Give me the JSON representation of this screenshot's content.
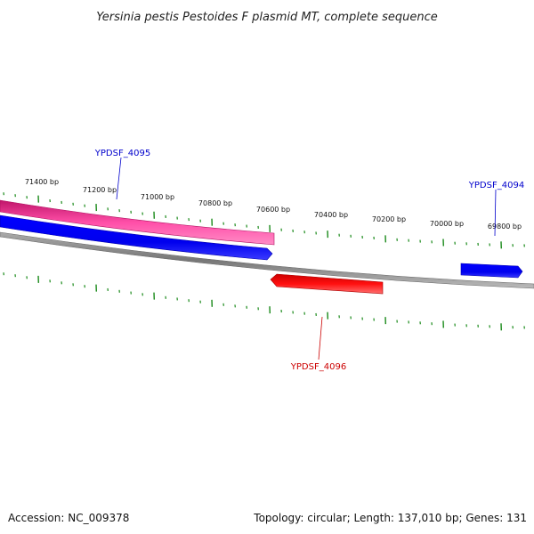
{
  "title": "Yersinia pestis Pestoides F plasmid MT, complete sequence",
  "tick_labels": [
    "71400 bp",
    "71200 bp",
    "71000 bp",
    "70800 bp",
    "70600 bp",
    "70400 bp",
    "70200 bp",
    "70000 bp",
    "69800 bp"
  ],
  "genes": [
    {
      "name": "YPDSF_4095",
      "strand": "forward",
      "color": "#0000cc"
    },
    {
      "name": "YPDSF_4094",
      "strand": "forward",
      "color": "#0000cc"
    },
    {
      "name": "YPDSF_4096",
      "strand": "reverse",
      "color": "#cc0000"
    }
  ],
  "footer": {
    "accession": "Accession: NC_009378",
    "summary": "Topology: circular; Length: 137,010 bp; Genes: 131"
  },
  "colors": {
    "forward_gene": "#0000ff",
    "reverse_gene": "#ff0000",
    "feature_track": "#ee2288",
    "backbone": "#888888",
    "ticks": "#1a8a1a"
  }
}
